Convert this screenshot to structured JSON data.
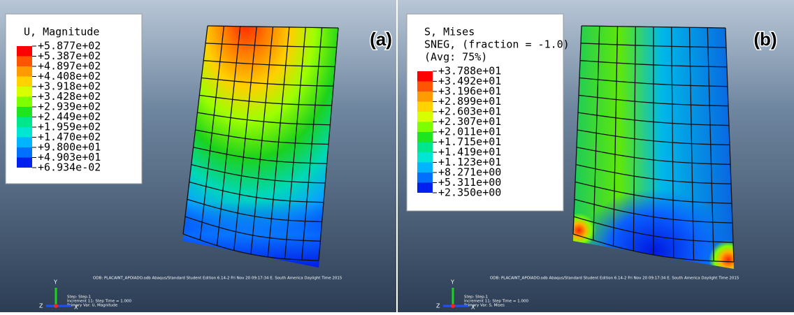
{
  "panels": [
    {
      "label": "(a)",
      "legend_title": [
        "U, Magnitude"
      ],
      "legend_values": [
        "+5.877e+02",
        "+5.387e+02",
        "+4.897e+02",
        "+4.408e+02",
        "+3.918e+02",
        "+3.428e+02",
        "+2.939e+02",
        "+2.449e+02",
        "+1.959e+02",
        "+1.470e+02",
        "+9.800e+01",
        "+4.903e+01",
        "+6.934e-02"
      ],
      "odb_line": "ODB: PLACAINT_APOIADO.odb     Abaqus/Standard Student Edition 6.14-2     Fri Nov 20 09:17:34 E. South America Daylight Time 2015",
      "step_lines": [
        "Step: Step-1",
        "Increment     11: Step Time =     1.000",
        "Primary Var: U, Magnitude"
      ]
    },
    {
      "label": "(b)",
      "legend_title": [
        "S, Mises",
        "SNEG, (fraction = -1.0)",
        "(Avg: 75%)"
      ],
      "legend_values": [
        "+3.788e+01",
        "+3.492e+01",
        "+3.196e+01",
        "+2.899e+01",
        "+2.603e+01",
        "+2.307e+01",
        "+2.011e+01",
        "+1.715e+01",
        "+1.419e+01",
        "+1.123e+01",
        "+8.271e+00",
        "+5.311e+00",
        "+2.350e+00"
      ],
      "odb_line": "ODB: PLACAINT_APOIADO.odb     Abaqus/Standard Student Edition 6.14-2     Fri Nov 20 09:17:34 E. South America Daylight Time 2015",
      "step_lines": [
        "Step: Step-1",
        "Increment     11: Step Time =     1.000",
        "Primary Var: S, Mises"
      ]
    }
  ],
  "triad": {
    "y": "Y",
    "z": "Z",
    "x": "X"
  }
}
